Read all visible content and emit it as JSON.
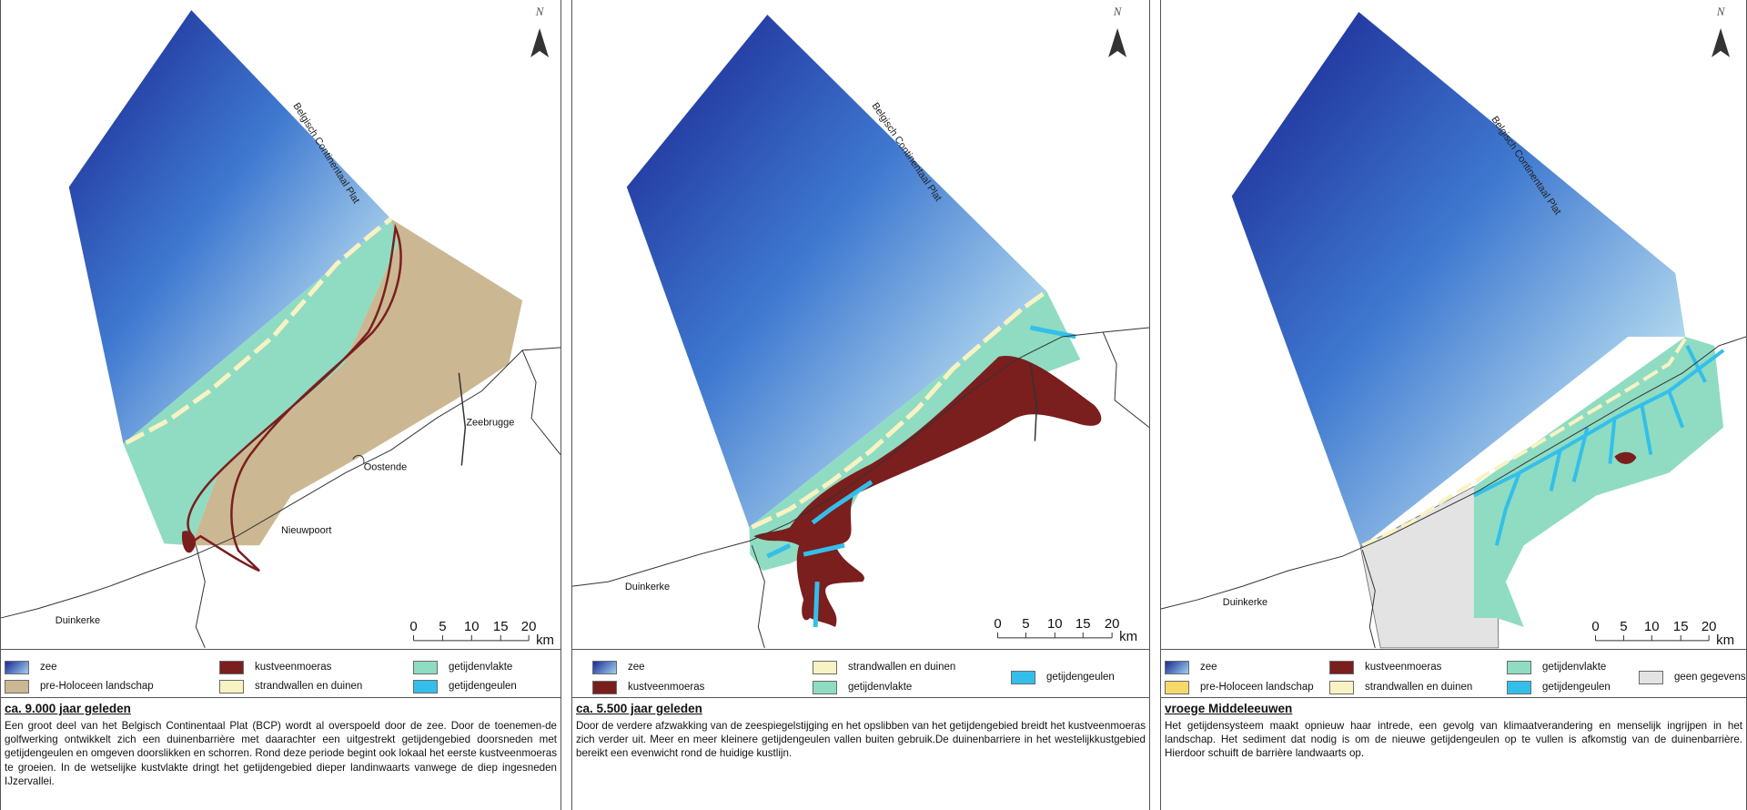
{
  "colors": {
    "sea_dark": "#1c2a96",
    "sea_light": "#bfe3f2",
    "peat": "#7a1e1e",
    "pre_holocene": "#cbb892",
    "dunes": "#f9f2c2",
    "tidal_flat": "#8fdcc2",
    "tidal_channel": "#33bfea",
    "no_data": "#e3e3e3",
    "pre_holocene_yellow": "#f7d96b"
  },
  "panels": [
    {
      "sea_label": "Belgisch Continentaal Plat",
      "places": [
        "Zeebrugge",
        "Oostende",
        "Nieuwpoort",
        "Duinkerke"
      ],
      "scalebar": {
        "ticks": [
          "0",
          "5",
          "10",
          "15",
          "20"
        ],
        "unit": "km"
      },
      "north_icon": "north-arrow-icon",
      "legend": [
        {
          "label": "zee",
          "color": "sea"
        },
        {
          "label": "kustveenmoeras",
          "color": "peat"
        },
        {
          "label": "getijdenvlakte",
          "color": "tidal_flat"
        },
        {
          "label": "pre-Holoceen landschap",
          "color": "pre_holocene"
        },
        {
          "label": "strandwallen en duinen",
          "color": "dunes"
        },
        {
          "label": "getijdengeulen",
          "color": "tidal_channel"
        }
      ],
      "title": "ca. 9.000 jaar geleden",
      "text": "Een groot deel van het Belgisch Continentaal Plat (BCP) wordt al overspoeld door de zee. Door de toenemen-de golfwerking ontwikkelt zich een duinenbarrière met daarachter een uitgestrekt getijdengebied doorsneden met getijdengeulen en omgeven doorslikken en schorren. Rond deze periode begint ook lokaal het eerste kustveenmoeras te groeien. In de wetselijke kustvlakte dringt het getijdengebied dieper landinwaarts vanwege de diep ingesneden IJzervallei."
    },
    {
      "sea_label": "Belgisch Continentaal Plat",
      "places": [
        "Duinkerke"
      ],
      "scalebar": {
        "ticks": [
          "0",
          "5",
          "10",
          "15",
          "20"
        ],
        "unit": "km"
      },
      "north_icon": "north-arrow-icon",
      "legend": [
        {
          "label": "zee",
          "color": "sea"
        },
        {
          "label": "strandwallen en duinen",
          "color": "dunes"
        },
        {
          "label": "getijdengeulen",
          "color": "tidal_channel"
        },
        {
          "label": "kustveenmoeras",
          "color": "peat"
        },
        {
          "label": "getijdenvlakte",
          "color": "tidal_flat"
        }
      ],
      "title": "ca. 5.500 jaar geleden",
      "text": "Door de verdere afzwakking van de zeespiegelstijging  en het opslibben van het getijdengebied breidt het kustveenmoeras zich verder uit. Meer en meer kleinere getijdengeulen vallen buiten gebruik.De duinenbarriere in het westelijkkustgebied bereikt een evenwicht rond de huidige kustlijn."
    },
    {
      "sea_label": "Belgisch Continentaal Plat",
      "places": [
        "Duinkerke"
      ],
      "scalebar": {
        "ticks": [
          "0",
          "5",
          "10",
          "15",
          "20"
        ],
        "unit": "km"
      },
      "north_icon": "north-arrow-icon",
      "legend": [
        {
          "label": "zee",
          "color": "sea"
        },
        {
          "label": "kustveenmoeras",
          "color": "peat"
        },
        {
          "label": "getijdenvlakte",
          "color": "tidal_flat"
        },
        {
          "label": "geen gegevens",
          "color": "no_data"
        },
        {
          "label": "pre-Holoceen landschap",
          "color": "pre_holocene_yellow"
        },
        {
          "label": "strandwallen en duinen",
          "color": "dunes"
        },
        {
          "label": "getijdengeulen",
          "color": "tidal_channel"
        }
      ],
      "title": "vroege Middeleeuwen",
      "text": "Het getijdensysteem maakt opnieuw haar intrede, een gevolg van klimaatverandering en menselijk ingrijpen in het landschap. Het sediment dat nodig is om de nieuwe getijdengeulen op te vullen is afkomstig van de duinenbarrière. Hierdoor schuift de barrière landwaarts op."
    }
  ]
}
